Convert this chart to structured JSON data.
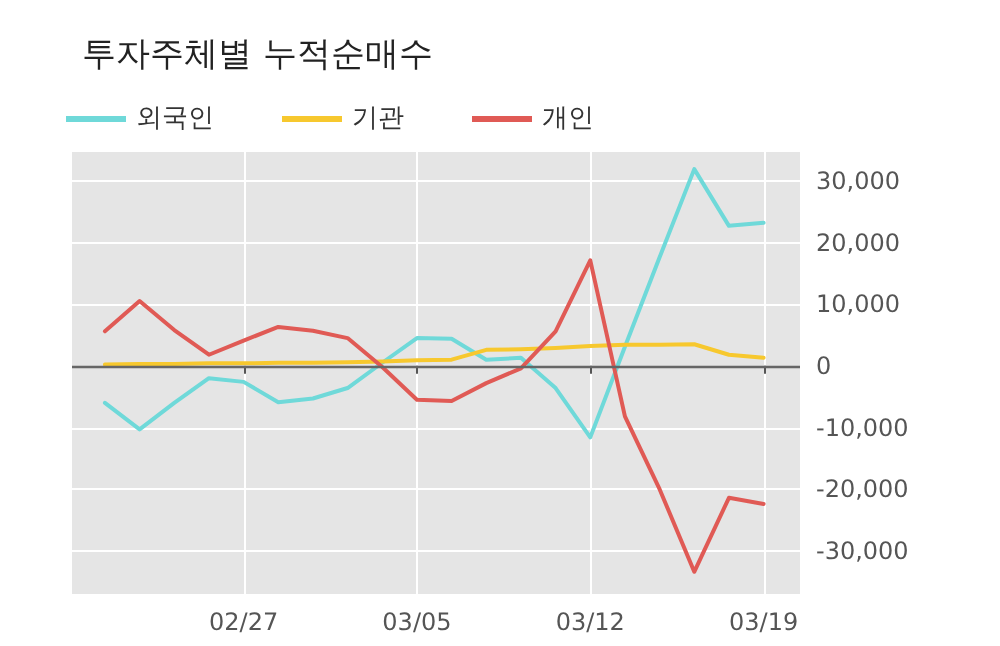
{
  "chart_data": {
    "type": "line",
    "title": "투자주체별 누적순매수",
    "categories": [
      null,
      null,
      null,
      null,
      "02/27",
      null,
      null,
      null,
      null,
      "03/05",
      null,
      null,
      null,
      null,
      "03/12",
      null,
      null,
      null,
      null,
      "03/19"
    ],
    "series": [
      {
        "name": "외국인",
        "color": "#6fd9d9",
        "values": [
          -6000,
          -10300,
          -6000,
          -2000,
          -2600,
          -5900,
          -5300,
          -3600,
          500,
          4500,
          4400,
          1000,
          1300,
          -3600,
          -11600,
          3100,
          17600,
          31900,
          22700,
          23200
        ]
      },
      {
        "name": "기관",
        "color": "#f7c82e",
        "values": [
          200,
          300,
          300,
          400,
          400,
          500,
          500,
          600,
          700,
          900,
          1000,
          2600,
          2700,
          2900,
          3200,
          3400,
          3400,
          3500,
          1800,
          1300
        ]
      },
      {
        "name": "개인",
        "color": "#e05a55",
        "values": [
          5600,
          10500,
          5800,
          1800,
          4100,
          6300,
          5700,
          4500,
          -200,
          -5500,
          -5700,
          -2800,
          -400,
          5600,
          17100,
          -8200,
          -20000,
          -33400,
          -21400,
          -22400
        ]
      }
    ],
    "ylim": [
      -37000,
      35000
    ],
    "yticks": [
      {
        "value": -30000,
        "label": "-30,000"
      },
      {
        "value": -20000,
        "label": "-20,000"
      },
      {
        "value": -10000,
        "label": "-10,000"
      },
      0,
      {
        "value": 10000,
        "label": "10,000"
      },
      {
        "value": 20000,
        "label": "20,000"
      },
      {
        "value": 30000,
        "label": "30,000"
      }
    ],
    "ref_lines": [
      {
        "axis": "y",
        "value": 0,
        "color": "#666666"
      }
    ],
    "grid": true,
    "legend": "top left",
    "marker": "none",
    "line_style": "solid"
  }
}
